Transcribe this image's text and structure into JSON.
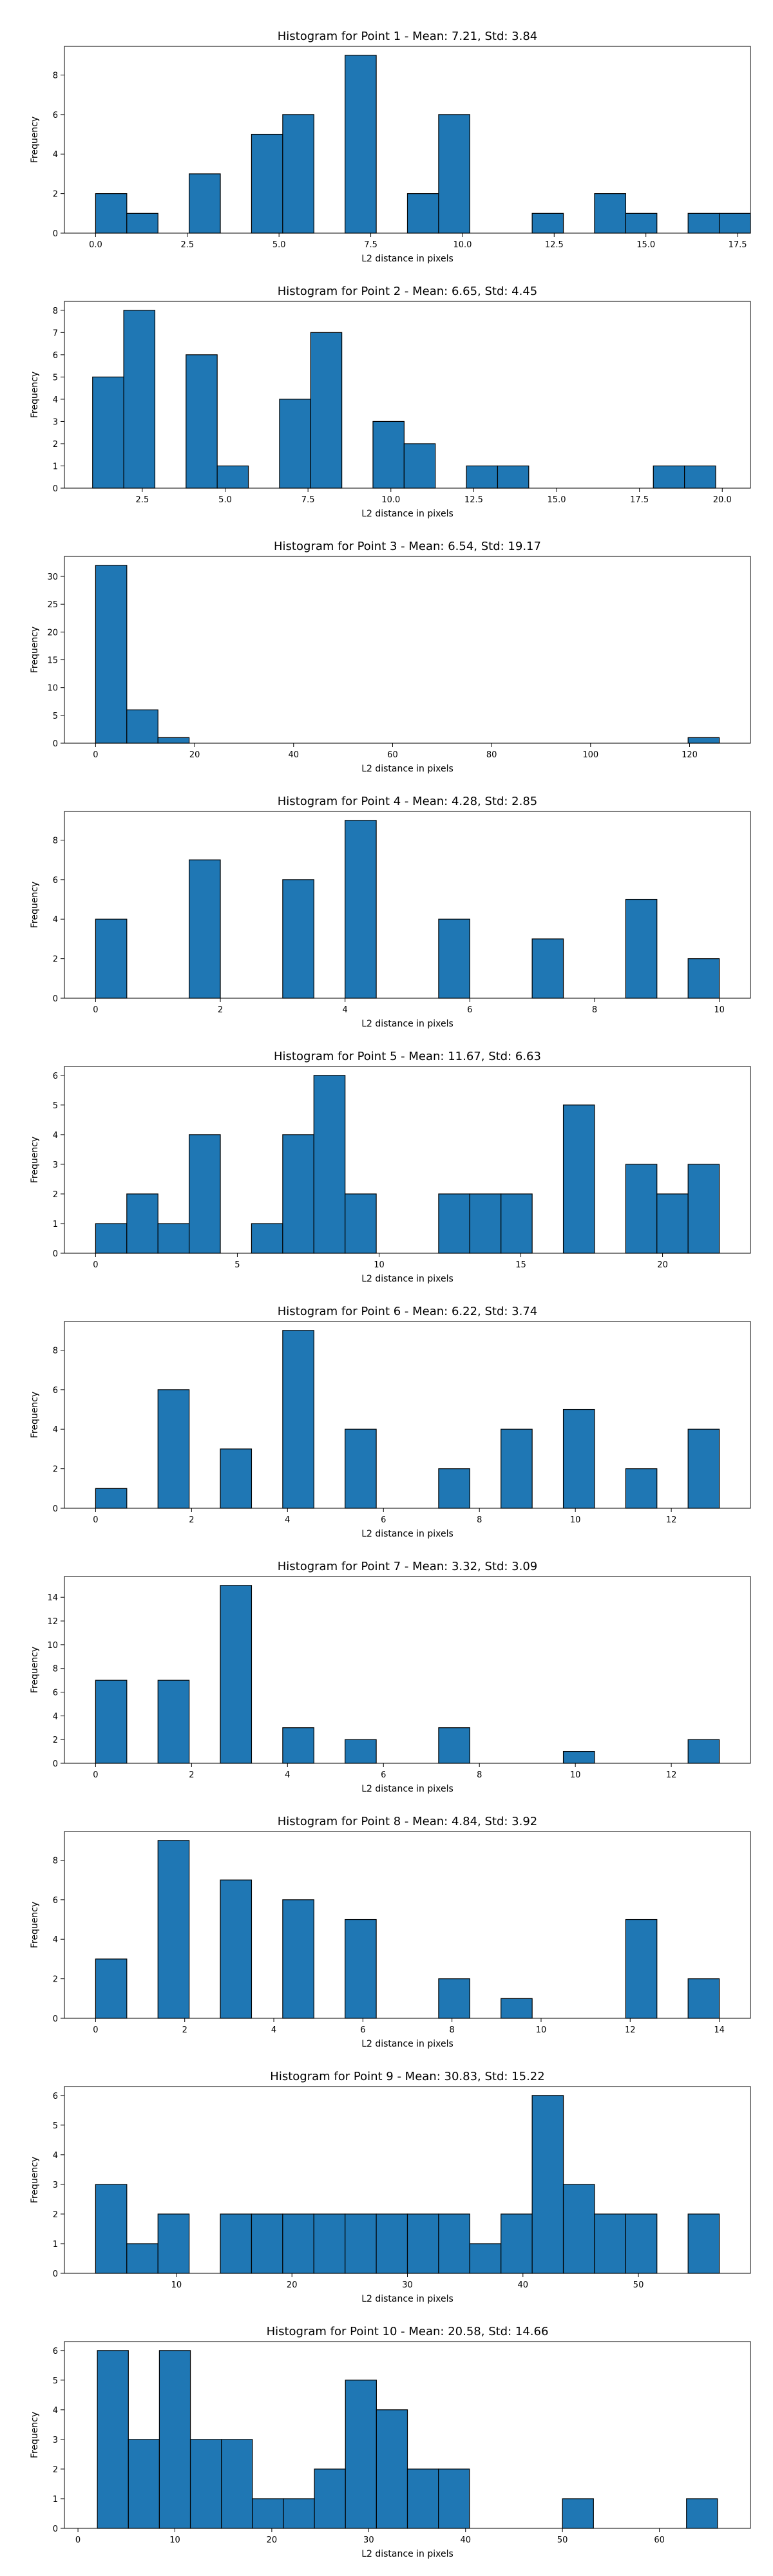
{
  "colors": {
    "bar": "#1f77b4",
    "edge": "#000000",
    "background": "#ffffff"
  },
  "chart_data": [
    {
      "type": "bar",
      "title": "Histogram for Point 1 - Mean: 7.21, Std: 3.84",
      "xlabel": "L2 distance in pixels",
      "ylabel": "Frequency",
      "xlim": [
        -0.85,
        17.85
      ],
      "ylim": [
        0,
        9.45
      ],
      "xticks": [
        0.0,
        2.5,
        5.0,
        7.5,
        10.0,
        12.5,
        15.0,
        17.5
      ],
      "xtick_labels": [
        "0.0",
        "2.5",
        "5.0",
        "7.5",
        "10.0",
        "12.5",
        "15.0",
        "17.5"
      ],
      "yticks": [
        0,
        2,
        4,
        6,
        8
      ],
      "bin_start": 0.0,
      "bin_width": 0.85,
      "values": [
        2,
        1,
        0,
        3,
        0,
        5,
        6,
        0,
        9,
        0,
        2,
        6,
        0,
        0,
        1,
        0,
        2,
        1,
        0,
        1,
        1
      ]
    },
    {
      "type": "bar",
      "title": "Histogram for Point 2 - Mean: 6.65, Std: 4.45",
      "xlabel": "L2 distance in pixels",
      "ylabel": "Frequency",
      "xlim": [
        0.15,
        20.85
      ],
      "ylim": [
        0,
        8.4
      ],
      "xticks": [
        2.5,
        5.0,
        7.5,
        10.0,
        12.5,
        15.0,
        17.5,
        20.0
      ],
      "xtick_labels": [
        "2.5",
        "5.0",
        "7.5",
        "10.0",
        "12.5",
        "15.0",
        "17.5",
        "20.0"
      ],
      "yticks": [
        0,
        1,
        2,
        3,
        4,
        5,
        6,
        7,
        8
      ],
      "bin_start": 1.0,
      "bin_width": 0.94,
      "values": [
        5,
        8,
        0,
        6,
        1,
        0,
        4,
        7,
        0,
        3,
        2,
        0,
        1,
        1,
        0,
        0,
        0,
        0,
        1,
        1
      ]
    },
    {
      "type": "bar",
      "title": "Histogram for Point 3 - Mean: 6.54, Std: 19.17",
      "xlabel": "L2 distance in pixels",
      "ylabel": "Frequency",
      "xlim": [
        -6.3,
        132.3
      ],
      "ylim": [
        0,
        33.6
      ],
      "xticks": [
        0,
        20,
        40,
        60,
        80,
        100,
        120
      ],
      "xtick_labels": [
        "0",
        "20",
        "40",
        "60",
        "80",
        "100",
        "120"
      ],
      "yticks": [
        0,
        5,
        10,
        15,
        20,
        25,
        30
      ],
      "bin_start": 0.0,
      "bin_width": 6.3,
      "values": [
        32,
        6,
        1,
        0,
        0,
        0,
        0,
        0,
        0,
        0,
        0,
        0,
        0,
        0,
        0,
        0,
        0,
        0,
        0,
        1
      ]
    },
    {
      "type": "bar",
      "title": "Histogram for Point 4 - Mean: 4.28, Std: 2.85",
      "xlabel": "L2 distance in pixels",
      "ylabel": "Frequency",
      "xlim": [
        -0.5,
        10.5
      ],
      "ylim": [
        0,
        9.45
      ],
      "xticks": [
        0,
        2,
        4,
        6,
        8,
        10
      ],
      "xtick_labels": [
        "0",
        "2",
        "4",
        "6",
        "8",
        "10"
      ],
      "yticks": [
        0,
        2,
        4,
        6,
        8
      ],
      "bin_start": 0.0,
      "bin_width": 0.5,
      "values": [
        4,
        0,
        0,
        7,
        0,
        0,
        6,
        0,
        9,
        0,
        0,
        4,
        0,
        0,
        3,
        0,
        0,
        5,
        0,
        2
      ]
    },
    {
      "type": "bar",
      "title": "Histogram for Point 5 - Mean: 11.67, Std: 6.63",
      "xlabel": "L2 distance in pixels",
      "ylabel": "Frequency",
      "xlim": [
        -1.1,
        23.1
      ],
      "ylim": [
        0,
        6.3
      ],
      "xticks": [
        0,
        5,
        10,
        15,
        20
      ],
      "xtick_labels": [
        "0",
        "5",
        "10",
        "15",
        "20"
      ],
      "yticks": [
        0,
        1,
        2,
        3,
        4,
        5,
        6
      ],
      "bin_start": 0.0,
      "bin_width": 1.1,
      "values": [
        1,
        2,
        1,
        4,
        0,
        1,
        4,
        6,
        2,
        0,
        0,
        2,
        2,
        2,
        0,
        5,
        0,
        3,
        2,
        3
      ]
    },
    {
      "type": "bar",
      "title": "Histogram for Point 6 - Mean: 6.22, Std: 3.74",
      "xlabel": "L2 distance in pixels",
      "ylabel": "Frequency",
      "xlim": [
        -0.65,
        13.65
      ],
      "ylim": [
        0,
        9.45
      ],
      "xticks": [
        0,
        2,
        4,
        6,
        8,
        10,
        12
      ],
      "xtick_labels": [
        "0",
        "2",
        "4",
        "6",
        "8",
        "10",
        "12"
      ],
      "yticks": [
        0,
        2,
        4,
        6,
        8
      ],
      "bin_start": 0.0,
      "bin_width": 0.65,
      "values": [
        1,
        0,
        6,
        0,
        3,
        0,
        9,
        0,
        4,
        0,
        0,
        2,
        0,
        4,
        0,
        5,
        0,
        2,
        0,
        4
      ]
    },
    {
      "type": "bar",
      "title": "Histogram for Point 7 - Mean: 3.32, Std: 3.09",
      "xlabel": "L2 distance in pixels",
      "ylabel": "Frequency",
      "xlim": [
        -0.65,
        13.65
      ],
      "ylim": [
        0,
        15.75
      ],
      "xticks": [
        0,
        2,
        4,
        6,
        8,
        10,
        12
      ],
      "xtick_labels": [
        "0",
        "2",
        "4",
        "6",
        "8",
        "10",
        "12"
      ],
      "yticks": [
        0,
        2,
        4,
        6,
        8,
        10,
        12,
        14
      ],
      "bin_start": 0.0,
      "bin_width": 0.65,
      "values": [
        7,
        0,
        7,
        0,
        15,
        0,
        3,
        0,
        2,
        0,
        0,
        3,
        0,
        0,
        0,
        1,
        0,
        0,
        0,
        2
      ]
    },
    {
      "type": "bar",
      "title": "Histogram for Point 8 - Mean: 4.84, Std: 3.92",
      "xlabel": "L2 distance in pixels",
      "ylabel": "Frequency",
      "xlim": [
        -0.7,
        14.7
      ],
      "ylim": [
        0,
        9.45
      ],
      "xticks": [
        0,
        2,
        4,
        6,
        8,
        10,
        12,
        14
      ],
      "xtick_labels": [
        "0",
        "2",
        "4",
        "6",
        "8",
        "10",
        "12",
        "14"
      ],
      "yticks": [
        0,
        2,
        4,
        6,
        8
      ],
      "bin_start": 0.0,
      "bin_width": 0.7,
      "values": [
        3,
        0,
        9,
        0,
        7,
        0,
        6,
        0,
        5,
        0,
        0,
        2,
        0,
        1,
        0,
        0,
        0,
        5,
        0,
        2
      ]
    },
    {
      "type": "bar",
      "title": "Histogram for Point 9 - Mean: 30.83, Std: 15.22",
      "xlabel": "L2 distance in pixels",
      "ylabel": "Frequency",
      "xlim": [
        0.3,
        59.7
      ],
      "ylim": [
        0,
        6.3
      ],
      "xticks": [
        10,
        20,
        30,
        40,
        50
      ],
      "xtick_labels": [
        "10",
        "20",
        "30",
        "40",
        "50"
      ],
      "yticks": [
        0,
        1,
        2,
        3,
        4,
        5,
        6
      ],
      "bin_start": 3.0,
      "bin_width": 2.7,
      "values": [
        3,
        1,
        2,
        0,
        2,
        2,
        2,
        2,
        2,
        2,
        2,
        2,
        1,
        2,
        6,
        3,
        2,
        2,
        0,
        2
      ]
    },
    {
      "type": "bar",
      "title": "Histogram for Point 10 - Mean: 20.58, Std: 14.66",
      "xlabel": "L2 distance in pixels",
      "ylabel": "Frequency",
      "xlim": [
        -1.4,
        69.4
      ],
      "ylim": [
        0,
        6.3
      ],
      "xticks": [
        0,
        10,
        20,
        30,
        40,
        50,
        60
      ],
      "xtick_labels": [
        "0",
        "10",
        "20",
        "30",
        "40",
        "50",
        "60"
      ],
      "yticks": [
        0,
        1,
        2,
        3,
        4,
        5,
        6
      ],
      "bin_start": 2.0,
      "bin_width": 3.2,
      "values": [
        6,
        3,
        6,
        3,
        3,
        1,
        1,
        2,
        5,
        4,
        2,
        2,
        0,
        0,
        0,
        1,
        0,
        0,
        0,
        1
      ]
    }
  ]
}
